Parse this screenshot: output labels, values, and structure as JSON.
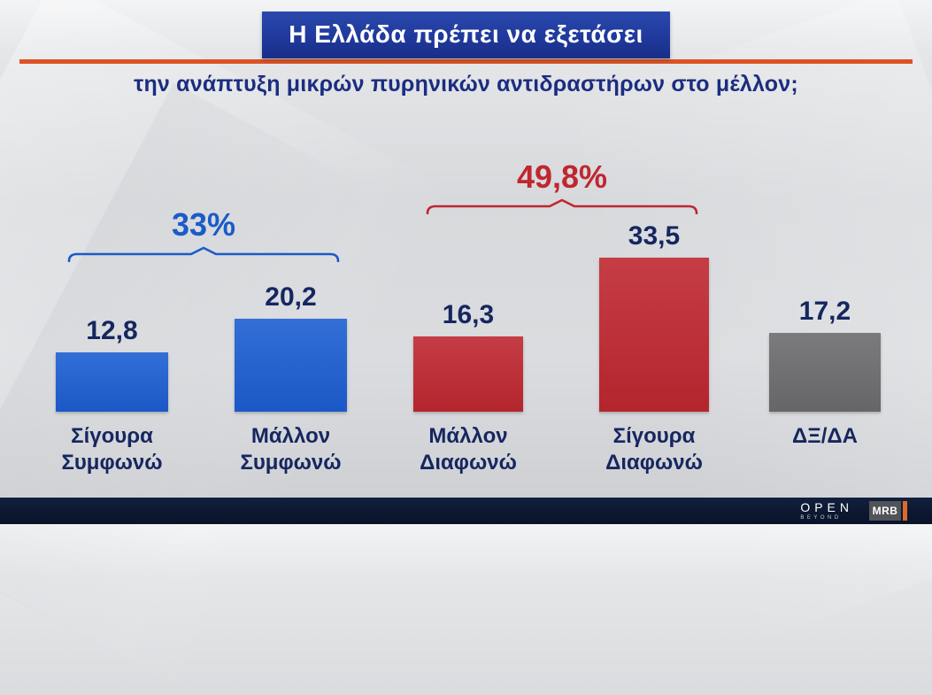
{
  "header": {
    "title": "Η Ελλάδα πρέπει να εξετάσει",
    "subtitle": "την ανάπτυξη μικρών πυρηνικών αντιδραστήρων στο μέλλον;"
  },
  "chart_data": {
    "type": "bar",
    "categories": [
      "Σίγουρα\nΣυμφωνώ",
      "Μάλλον\nΣυμφωνώ",
      "Μάλλον\nΔιαφωνώ",
      "Σίγουρα\nΔιαφωνώ",
      "ΔΞ/ΔΑ"
    ],
    "values": [
      12.8,
      20.2,
      16.3,
      33.5,
      17.2
    ],
    "value_labels": [
      "12,8",
      "20,2",
      "16,3",
      "33,5",
      "17,2"
    ],
    "bar_colors": [
      "#1c5ed2",
      "#1c5ed2",
      "#bf2730",
      "#bf2730",
      "#6c6c6e"
    ],
    "groups": [
      {
        "label": "33%",
        "color": "#1a5bc8",
        "bars": [
          0,
          1
        ]
      },
      {
        "label": "49,8%",
        "color": "#bf2730",
        "bars": [
          2,
          3
        ]
      }
    ],
    "title": "Η Ελλάδα πρέπει να εξετάσει την ανάπτυξη μικρών πυρηνικών αντιδραστήρων στο μέλλον;",
    "xlabel": "",
    "ylabel": "",
    "ylim": [
      0,
      40
    ],
    "grid": false,
    "legend": "none"
  },
  "footer": {
    "channel": "OPEN",
    "channel_sub": "BEYOND",
    "agency": "MRB"
  },
  "colors": {
    "banner_blue": "#20399c",
    "accent_orange": "#dc5226",
    "subtitle_navy": "#1b2d80",
    "value_text": "#16265f",
    "footer_navy": "#0c1730",
    "bar_blue": "#1c5ed2",
    "bar_red": "#bf2730",
    "bar_gray": "#6c6c6e"
  }
}
